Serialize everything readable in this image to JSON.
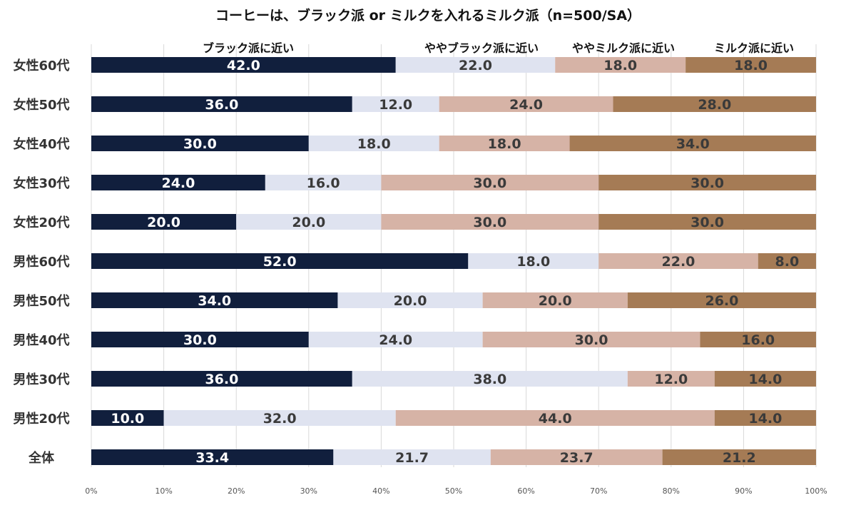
{
  "chart_data": {
    "type": "bar",
    "orientation": "horizontal",
    "stacked": "percent",
    "title": "コーヒーは、ブラック派 or ミルクを入れるミルク派（n=500/SA）",
    "categories": [
      "女性60代",
      "女性50代",
      "女性40代",
      "女性30代",
      "女性20代",
      "男性60代",
      "男性50代",
      "男性40代",
      "男性30代",
      "男性20代",
      "全体"
    ],
    "series": [
      {
        "name": "ブラック派に近い",
        "color": "#111f3d",
        "label_color": "#ffffff",
        "values": [
          42.0,
          36.0,
          30.0,
          24.0,
          20.0,
          52.0,
          34.0,
          30.0,
          36.0,
          10.0,
          33.4
        ]
      },
      {
        "name": "ややブラック派に近い",
        "color": "#dfe3f0",
        "label_color": "#3a3a3a",
        "values": [
          22.0,
          12.0,
          18.0,
          16.0,
          20.0,
          18.0,
          20.0,
          24.0,
          38.0,
          32.0,
          21.7
        ]
      },
      {
        "name": "ややミルク派に近い",
        "color": "#d6b3a6",
        "label_color": "#3a3a3a",
        "values": [
          18.0,
          24.0,
          18.0,
          30.0,
          30.0,
          22.0,
          20.0,
          30.0,
          12.0,
          44.0,
          23.7
        ]
      },
      {
        "name": "ミルク派に近い",
        "color": "#a57b55",
        "label_color": "#3a3a3a",
        "values": [
          18.0,
          28.0,
          34.0,
          30.0,
          30.0,
          8.0,
          26.0,
          16.0,
          14.0,
          14.0,
          21.2
        ]
      }
    ],
    "xlim": [
      0,
      100
    ],
    "xticks": [
      "0%",
      "10%",
      "20%",
      "30%",
      "40%",
      "50%",
      "60%",
      "70%",
      "80%",
      "90%",
      "100%"
    ],
    "grid": "vertical",
    "legend": "top"
  }
}
